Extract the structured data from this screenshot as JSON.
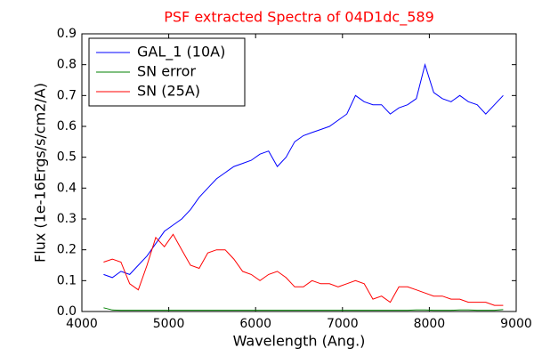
{
  "chart_data": {
    "type": "line",
    "title": "PSF extracted Spectra of 04D1dc_589",
    "title_color": "#ff0000",
    "xlabel": "Wavelength (Ang.)",
    "ylabel": "Flux (1e-16Ergs/s/cm2/A)",
    "x": [
      4250,
      4350,
      4450,
      4550,
      4650,
      4750,
      4850,
      4950,
      5050,
      5150,
      5250,
      5350,
      5450,
      5550,
      5650,
      5750,
      5850,
      5950,
      6050,
      6150,
      6250,
      6350,
      6450,
      6550,
      6650,
      6750,
      6850,
      6950,
      7050,
      7150,
      7250,
      7350,
      7450,
      7550,
      7650,
      7750,
      7850,
      7950,
      8050,
      8150,
      8250,
      8350,
      8450,
      8550,
      8650,
      8750,
      8850
    ],
    "series": [
      {
        "name": "GAL_1 (10A)",
        "color": "#0000ff",
        "values": [
          0.12,
          0.11,
          0.13,
          0.12,
          0.15,
          0.18,
          0.22,
          0.26,
          0.28,
          0.3,
          0.33,
          0.37,
          0.4,
          0.43,
          0.45,
          0.47,
          0.48,
          0.49,
          0.51,
          0.52,
          0.47,
          0.5,
          0.55,
          0.57,
          0.58,
          0.59,
          0.6,
          0.62,
          0.64,
          0.7,
          0.68,
          0.67,
          0.67,
          0.64,
          0.66,
          0.67,
          0.69,
          0.8,
          0.71,
          0.69,
          0.68,
          0.7,
          0.68,
          0.67,
          0.64,
          0.67,
          0.7
        ]
      },
      {
        "name": "SN error",
        "color": "#008000",
        "values": [
          0.012,
          0.005,
          0.004,
          0.004,
          0.004,
          0.004,
          0.004,
          0.004,
          0.004,
          0.004,
          0.004,
          0.004,
          0.004,
          0.004,
          0.004,
          0.004,
          0.004,
          0.004,
          0.004,
          0.004,
          0.004,
          0.004,
          0.004,
          0.004,
          0.004,
          0.004,
          0.004,
          0.004,
          0.004,
          0.004,
          0.004,
          0.004,
          0.004,
          0.004,
          0.004,
          0.004,
          0.005,
          0.005,
          0.004,
          0.004,
          0.004,
          0.005,
          0.005,
          0.004,
          0.004,
          0.004,
          0.006
        ]
      },
      {
        "name": "SN (25A)",
        "color": "#ff0000",
        "values": [
          0.16,
          0.17,
          0.16,
          0.09,
          0.07,
          0.15,
          0.24,
          0.21,
          0.25,
          0.2,
          0.15,
          0.14,
          0.19,
          0.2,
          0.2,
          0.17,
          0.13,
          0.12,
          0.1,
          0.12,
          0.13,
          0.11,
          0.08,
          0.08,
          0.1,
          0.09,
          0.09,
          0.08,
          0.09,
          0.1,
          0.09,
          0.04,
          0.05,
          0.03,
          0.08,
          0.08,
          0.07,
          0.06,
          0.05,
          0.05,
          0.04,
          0.04,
          0.03,
          0.03,
          0.03,
          0.02,
          0.02
        ]
      }
    ],
    "xlim": [
      4000,
      9000
    ],
    "xticks": [
      4000,
      5000,
      6000,
      7000,
      8000,
      9000
    ],
    "ylim": [
      0,
      0.9
    ],
    "yticks": [
      {
        "value": 0,
        "label": "0.0"
      },
      0.1,
      0.2,
      0.3,
      0.4,
      0.5,
      0.6,
      0.7,
      0.8,
      0.9
    ],
    "grid": false,
    "legend": "upper left"
  }
}
